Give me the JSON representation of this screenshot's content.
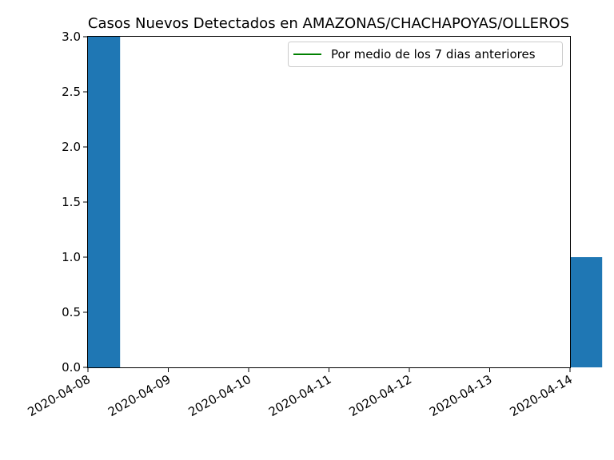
{
  "chart_data": {
    "type": "bar",
    "title": "Casos Nuevos Detectados en AMAZONAS/CHACHAPOYAS/OLLEROS",
    "xlabel": "",
    "ylabel": "",
    "x_ticks": [
      "2020-04-08",
      "2020-04-09",
      "2020-04-10",
      "2020-04-11",
      "2020-04-12",
      "2020-04-13",
      "2020-04-14"
    ],
    "y_ticks": [
      "0.0",
      "0.5",
      "1.0",
      "1.5",
      "2.0",
      "2.5",
      "3.0"
    ],
    "ylim": [
      0,
      3.0
    ],
    "series": [
      {
        "name": "",
        "kind": "bar",
        "color": "#1f77b4",
        "dates": [
          "2020-04-08",
          "2020-04-09",
          "2020-04-10",
          "2020-04-11",
          "2020-04-12",
          "2020-04-13",
          "2020-04-14"
        ],
        "values": [
          3,
          0,
          0,
          0,
          0,
          0,
          1
        ]
      },
      {
        "name": "Por medio de los 7 dias anteriores",
        "kind": "line",
        "color": "#008000",
        "dates": [],
        "values": []
      }
    ],
    "legend": {
      "position": "top-right",
      "entries": [
        "Por medio de los 7 dias anteriores"
      ]
    },
    "grid": false
  }
}
